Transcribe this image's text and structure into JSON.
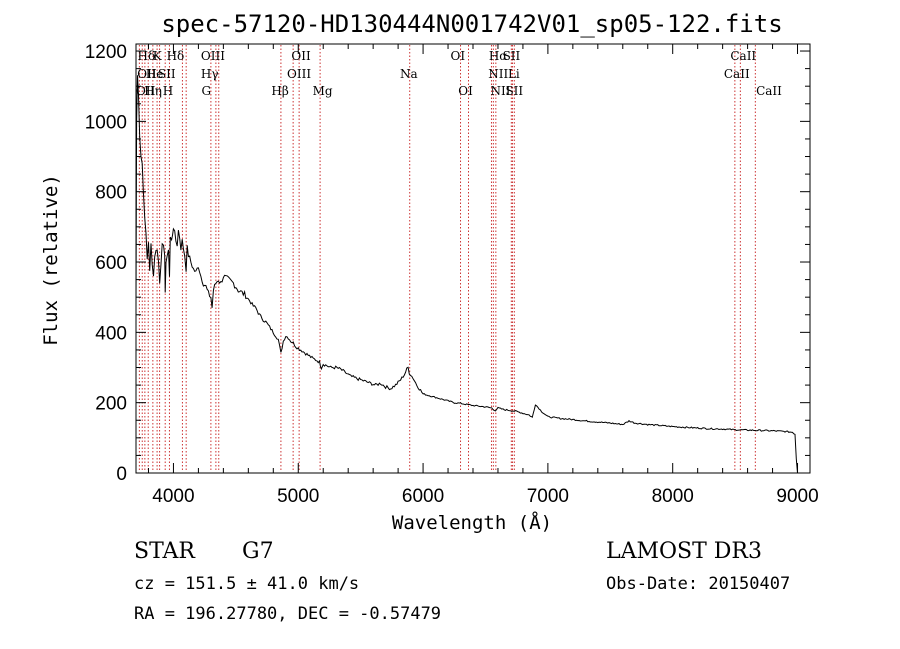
{
  "chart_data": {
    "type": "line",
    "title": "spec-57120-HD130444N001742V01_sp05-122.fits",
    "xlabel": "Wavelength (Å)",
    "ylabel": "Flux (relative)",
    "xlim": [
      3700,
      9100
    ],
    "ylim": [
      0,
      1220
    ],
    "xticks": [
      4000,
      5000,
      6000,
      7000,
      8000,
      9000
    ],
    "xtick_labels": [
      "4000",
      "5000",
      "6000",
      "7000",
      "8000",
      "9000"
    ],
    "yticks": [
      0,
      200,
      400,
      600,
      800,
      1000,
      1200
    ],
    "ytick_labels": [
      "0",
      "200",
      "400",
      "600",
      "800",
      "1000",
      "1200"
    ],
    "grid": false,
    "series": [
      {
        "color": "#000000",
        "x": [
          3700,
          3705,
          3712,
          3720,
          3730,
          3740,
          3750,
          3760,
          3770,
          3780,
          3790,
          3800,
          3810,
          3820,
          3830,
          3840,
          3850,
          3860,
          3870,
          3880,
          3890,
          3900,
          3910,
          3920,
          3930,
          3934,
          3940,
          3950,
          3960,
          3968,
          3975,
          3985,
          4000,
          4010,
          4020,
          4030,
          4040,
          4050,
          4060,
          4070,
          4080,
          4090,
          4101,
          4110,
          4120,
          4140,
          4160,
          4180,
          4200,
          4220,
          4240,
          4260,
          4280,
          4300,
          4310,
          4320,
          4340,
          4360,
          4380,
          4400,
          4420,
          4440,
          4460,
          4480,
          4500,
          4520,
          4540,
          4560,
          4580,
          4600,
          4620,
          4640,
          4660,
          4680,
          4700,
          4720,
          4740,
          4760,
          4780,
          4800,
          4820,
          4840,
          4861,
          4880,
          4900,
          4920,
          4940,
          4960,
          4980,
          5000,
          5020,
          5040,
          5060,
          5080,
          5100,
          5120,
          5150,
          5170,
          5185,
          5200,
          5230,
          5260,
          5300,
          5340,
          5380,
          5420,
          5460,
          5500,
          5540,
          5580,
          5620,
          5660,
          5700,
          5740,
          5780,
          5820,
          5850,
          5870,
          5880,
          5890,
          5900,
          5920,
          5950,
          5980,
          6000,
          6050,
          6100,
          6150,
          6200,
          6250,
          6300,
          6350,
          6400,
          6450,
          6500,
          6550,
          6563,
          6580,
          6600,
          6650,
          6700,
          6750,
          6800,
          6850,
          6868,
          6875,
          6900,
          6950,
          7000,
          7100,
          7200,
          7300,
          7400,
          7500,
          7550,
          7600,
          7650,
          7700,
          7800,
          7900,
          8000,
          8100,
          8200,
          8300,
          8400,
          8500,
          8600,
          8700,
          8800,
          8900,
          8960,
          8980,
          8990,
          9000
        ],
        "y": [
          480,
          1000,
          1130,
          1080,
          960,
          900,
          880,
          800,
          720,
          680,
          610,
          660,
          570,
          650,
          600,
          560,
          620,
          630,
          640,
          600,
          540,
          600,
          660,
          640,
          610,
          520,
          600,
          610,
          640,
          560,
          670,
          660,
          700,
          680,
          660,
          650,
          690,
          670,
          640,
          660,
          640,
          620,
          580,
          640,
          620,
          600,
          580,
          570,
          590,
          560,
          540,
          530,
          510,
          500,
          470,
          520,
          540,
          550,
          540,
          560,
          555,
          550,
          545,
          540,
          530,
          520,
          515,
          510,
          505,
          495,
          485,
          475,
          470,
          455,
          445,
          435,
          430,
          420,
          410,
          400,
          390,
          380,
          340,
          375,
          390,
          385,
          375,
          370,
          360,
          355,
          350,
          345,
          340,
          335,
          330,
          325,
          320,
          315,
          300,
          310,
          305,
          300,
          300,
          295,
          285,
          275,
          270,
          265,
          260,
          255,
          250,
          255,
          245,
          240,
          250,
          265,
          280,
          295,
          300,
          285,
          280,
          270,
          250,
          235,
          225,
          220,
          215,
          210,
          205,
          200,
          198,
          195,
          192,
          190,
          188,
          185,
          180,
          178,
          185,
          180,
          178,
          175,
          170,
          165,
          160,
          158,
          195,
          175,
          160,
          155,
          152,
          148,
          145,
          142,
          140,
          138,
          148,
          142,
          138,
          135,
          132,
          130,
          128,
          126,
          125,
          123,
          122,
          121,
          120,
          118,
          116,
          110,
          40,
          0
        ]
      }
    ],
    "spectral_lines": [
      {
        "label": "Hδ",
        "x": 3712,
        "row": 1,
        "align": "start"
      },
      {
        "label": "K",
        "x": 3834,
        "row": 1,
        "align": "start"
      },
      {
        "label": "Hδ",
        "x": 3945,
        "row": 1,
        "align": "start"
      },
      {
        "label": "OIII",
        "x": 4220,
        "row": 1,
        "align": "start"
      },
      {
        "label": "OII",
        "x": 4945,
        "row": 1,
        "align": "start"
      },
      {
        "label": "OI",
        "x": 6220,
        "row": 1,
        "align": "start"
      },
      {
        "label": "Hα",
        "x": 6527,
        "row": 1,
        "align": "start"
      },
      {
        "label": "SII",
        "x": 6637,
        "row": 1,
        "align": "start"
      },
      {
        "label": "CaII",
        "x": 8462,
        "row": 1,
        "align": "start"
      },
      {
        "label": "OII",
        "x": 3710,
        "row": 2,
        "align": "start"
      },
      {
        "label": "He",
        "x": 3778,
        "row": 2,
        "align": "start"
      },
      {
        "label": "SII",
        "x": 3876,
        "row": 2,
        "align": "start"
      },
      {
        "label": "Hγ",
        "x": 4220,
        "row": 2,
        "align": "start"
      },
      {
        "label": "OIII",
        "x": 4910,
        "row": 2,
        "align": "start"
      },
      {
        "label": "Na",
        "x": 5815,
        "row": 2,
        "align": "start"
      },
      {
        "label": "NII",
        "x": 6522,
        "row": 2,
        "align": "start"
      },
      {
        "label": "Li",
        "x": 6680,
        "row": 2,
        "align": "start"
      },
      {
        "label": "CaII",
        "x": 8410,
        "row": 2,
        "align": "start"
      },
      {
        "label": "OII",
        "x": 3700,
        "row": 3,
        "align": "start"
      },
      {
        "label": "Hη",
        "x": 3766,
        "row": 3,
        "align": "start"
      },
      {
        "label": "H",
        "x": 3914,
        "row": 3,
        "align": "start"
      },
      {
        "label": "G",
        "x": 4225,
        "row": 3,
        "align": "start"
      },
      {
        "label": "Hβ",
        "x": 4785,
        "row": 3,
        "align": "start"
      },
      {
        "label": "Mg",
        "x": 5115,
        "row": 3,
        "align": "start"
      },
      {
        "label": "OI",
        "x": 6282,
        "row": 3,
        "align": "start"
      },
      {
        "label": "NII",
        "x": 6540,
        "row": 3,
        "align": "start"
      },
      {
        "label": "SII",
        "x": 6660,
        "row": 3,
        "align": "start"
      },
      {
        "label": "CaII",
        "x": 8668,
        "row": 3,
        "align": "start"
      }
    ],
    "line_positions": [
      3727,
      3750,
      3771,
      3798,
      3835,
      3869,
      3889,
      3934,
      3968,
      4072,
      4102,
      4300,
      4340,
      4363,
      4861,
      4959,
      5007,
      5175,
      5893,
      6300,
      6364,
      6548,
      6563,
      6583,
      6707,
      6716,
      6731,
      8498,
      8542,
      8662
    ]
  },
  "info": {
    "object_class": "STAR",
    "subclass": "G7",
    "survey": "LAMOST DR3",
    "cz": "cz = 151.5 ± 41.0 km/s",
    "obs_date": "Obs-Date: 20150407",
    "radec": "RA = 196.27780, DEC =  -0.57479"
  }
}
